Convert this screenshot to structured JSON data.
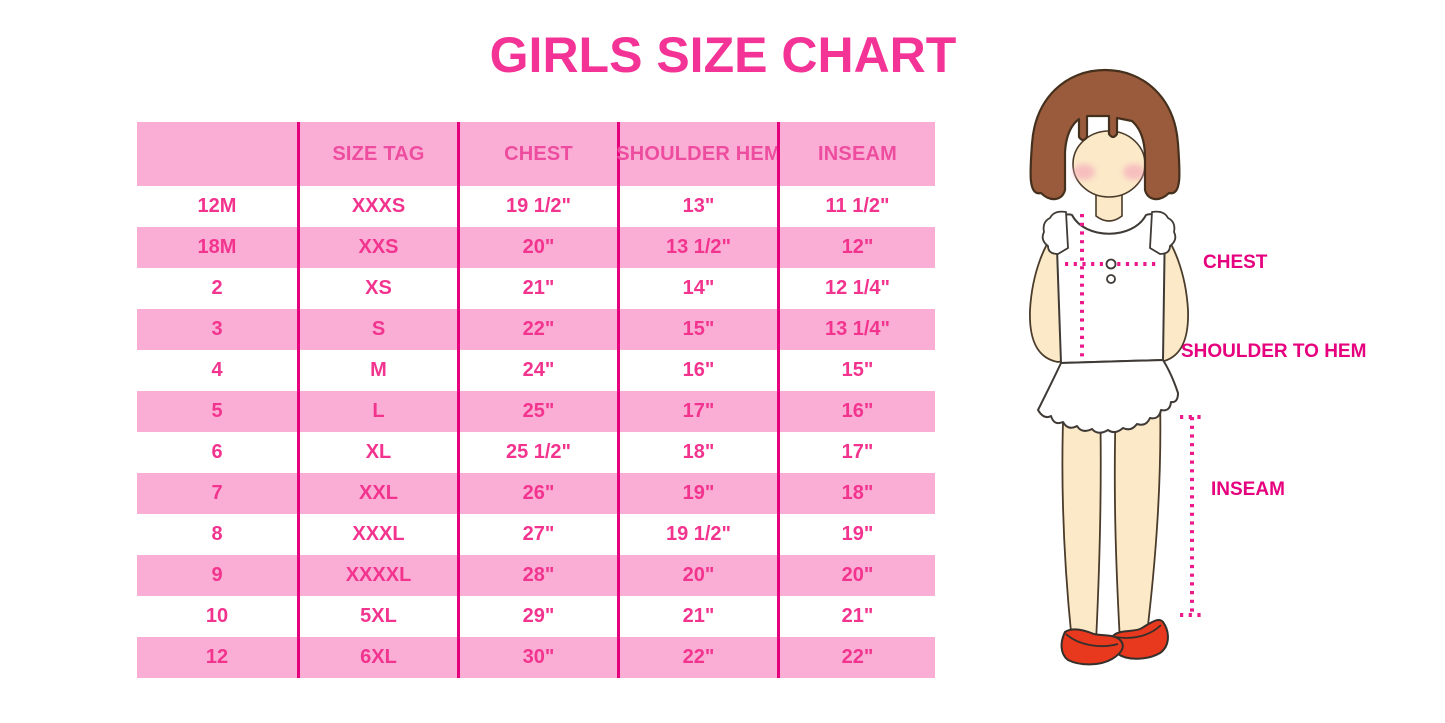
{
  "title": "GIRLS SIZE CHART",
  "chart_data": {
    "type": "table",
    "title": "GIRLS SIZE CHART",
    "columns": [
      "",
      "SIZE TAG",
      "CHEST",
      "SHOULDER HEM",
      "INSEAM"
    ],
    "rows": [
      [
        "12M",
        "XXXS",
        "19 1/2\"",
        "13\"",
        "11 1/2\""
      ],
      [
        "18M",
        "XXS",
        "20\"",
        "13 1/2\"",
        "12\""
      ],
      [
        "2",
        "XS",
        "21\"",
        "14\"",
        "12 1/4\""
      ],
      [
        "3",
        "S",
        "22\"",
        "15\"",
        "13 1/4\""
      ],
      [
        "4",
        "M",
        "24\"",
        "16\"",
        "15\""
      ],
      [
        "5",
        "L",
        "25\"",
        "17\"",
        "16\""
      ],
      [
        "6",
        "XL",
        "25 1/2\"",
        "18\"",
        "17\""
      ],
      [
        "7",
        "XXL",
        "26\"",
        "19\"",
        "18\""
      ],
      [
        "8",
        "XXXL",
        "27\"",
        "19 1/2\"",
        "19\""
      ],
      [
        "9",
        "XXXXL",
        "28\"",
        "20\"",
        "20\""
      ],
      [
        "10",
        "5XL",
        "29\"",
        "21\"",
        "21\""
      ],
      [
        "12",
        "6XL",
        "30\"",
        "22\"",
        "22\""
      ]
    ],
    "stripe_pattern": "header pink; data rows alternate white/pink starting with white",
    "legend_position": "none",
    "grid": "vertical column separators only"
  },
  "figure": {
    "description": "illustration of a girl with measurement guides",
    "labels": {
      "chest": "CHEST",
      "shoulder_to_hem": "SHOULDER TO HEM",
      "inseam": "INSEAM"
    }
  },
  "colors": {
    "title_pink": "#F43397",
    "table_stripe_pink": "#FBAED5",
    "table_grid_line": "#E5017E",
    "table_text_pink": "#F2348F",
    "header_text_pink": "#EE4D9F",
    "measure_label_magenta": "#E6007E",
    "dotted_line_magenta": "#EB1A8C",
    "hair_brown": "#9A5B3C",
    "skin_cream": "#FBE9C8",
    "shoe_red": "#E8391F",
    "garment_white": "#FFFFFF"
  }
}
